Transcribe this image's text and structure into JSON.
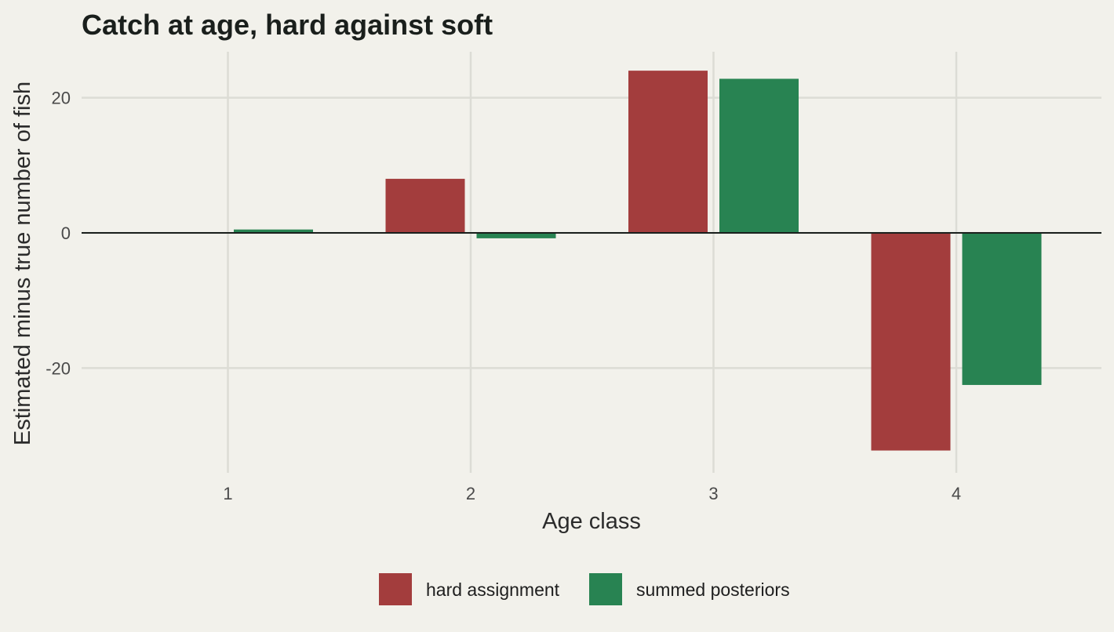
{
  "chart_data": {
    "type": "bar",
    "title": "Catch at age, hard against soft",
    "xlabel": "Age class",
    "ylabel": "Estimated minus true number of fish",
    "categories": [
      "1",
      "2",
      "3",
      "4"
    ],
    "series": [
      {
        "name": "hard assignment",
        "color": "#a33d3d",
        "values": [
          0,
          8,
          24,
          -32.2
        ]
      },
      {
        "name": "summed posteriors",
        "color": "#288352",
        "values": [
          0.5,
          -0.8,
          22.8,
          -22.5
        ]
      }
    ],
    "yticks": [
      -20,
      0,
      20
    ],
    "ylim": [
      -35.5,
      26.8
    ],
    "grid": true,
    "legend_position": "bottom"
  }
}
